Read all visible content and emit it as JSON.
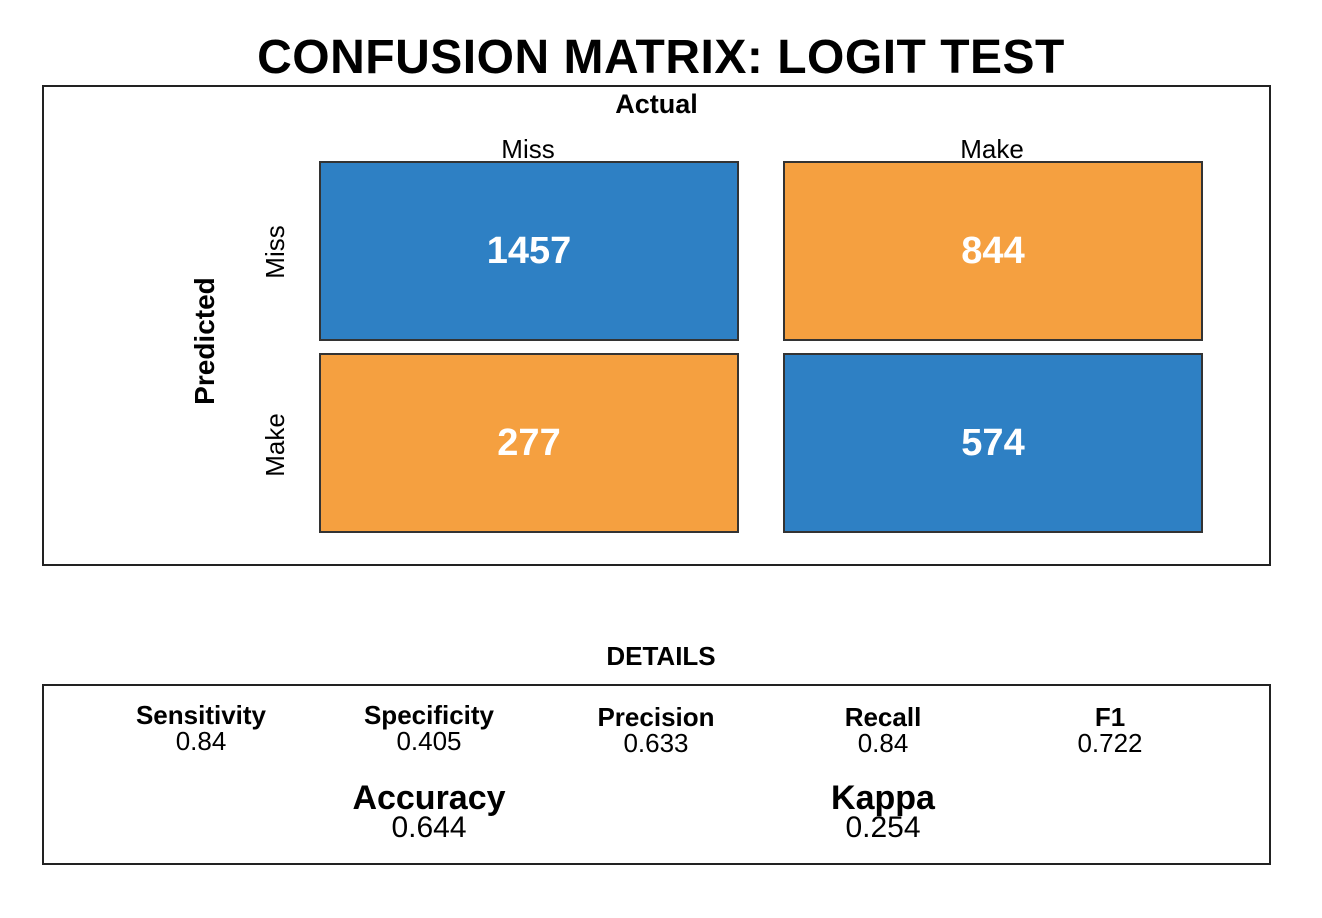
{
  "title": "CONFUSION MATRIX: LOGIT TEST",
  "chart_data": {
    "type": "heatmap",
    "title": "CONFUSION MATRIX: LOGIT TEST",
    "xlabel": "Actual",
    "ylabel": "Predicted",
    "columns": [
      "Miss",
      "Make"
    ],
    "rows": [
      "Miss",
      "Make"
    ],
    "values": [
      [
        1457,
        844
      ],
      [
        277,
        574
      ]
    ],
    "colors": {
      "correct": "#2e80c4",
      "incorrect": "#f5a040",
      "text": "#ffffff"
    }
  },
  "details": {
    "title": "DETAILS",
    "metrics": [
      {
        "label": "Sensitivity",
        "value": "0.84"
      },
      {
        "label": "Specificity",
        "value": "0.405"
      },
      {
        "label": "Precision",
        "value": "0.633"
      },
      {
        "label": "Recall",
        "value": "0.84"
      },
      {
        "label": "F1",
        "value": "0.722"
      }
    ],
    "summary": [
      {
        "label": "Accuracy",
        "value": "0.644"
      },
      {
        "label": "Kappa",
        "value": "0.254"
      }
    ]
  }
}
